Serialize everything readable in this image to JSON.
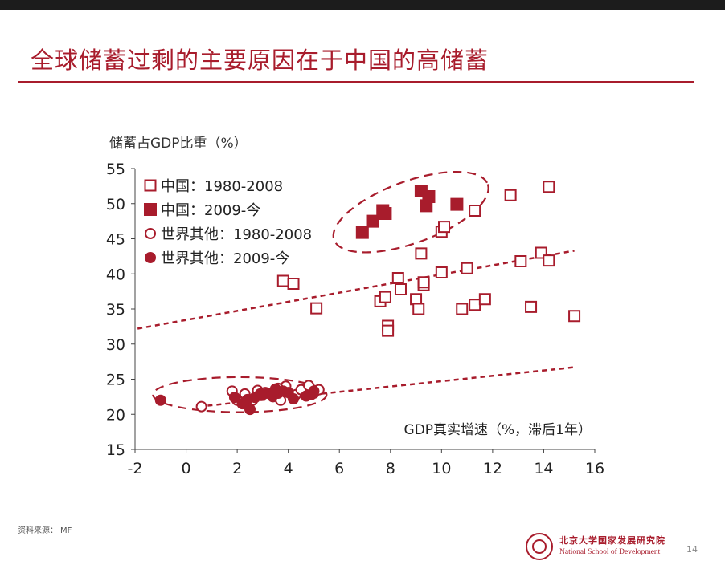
{
  "slide": {
    "title": "全球储蓄过剩的主要原因在于中国的高储蓄",
    "source": "资料来源：IMF",
    "page_number": "14",
    "logo_cn": "北京大学国家发展研究院",
    "logo_en": "National School of Development"
  },
  "colors": {
    "accent": "#a81c2c",
    "text": "#222222"
  },
  "chart_data": {
    "type": "scatter",
    "ylabel": "储蓄占GDP比重（%）",
    "xlabel": "GDP真实增速（%，滞后1年）",
    "xlim": [
      -2,
      16
    ],
    "ylim": [
      15,
      55
    ],
    "x_ticks": [
      -2,
      0,
      2,
      4,
      6,
      8,
      10,
      12,
      14,
      16
    ],
    "y_ticks": [
      15,
      20,
      25,
      30,
      35,
      40,
      45,
      50,
      55
    ],
    "legend_position": "top-left",
    "series": [
      {
        "name": "中国：1980-2008",
        "marker": "square-open",
        "points": [
          [
            3.8,
            39
          ],
          [
            4.2,
            38.6
          ],
          [
            5.1,
            35.1
          ],
          [
            7.6,
            36.1
          ],
          [
            7.8,
            36.7
          ],
          [
            7.9,
            32.6
          ],
          [
            7.9,
            31.9
          ],
          [
            8.3,
            39.4
          ],
          [
            8.4,
            37.8
          ],
          [
            9.0,
            36.4
          ],
          [
            9.1,
            35.0
          ],
          [
            9.2,
            42.9
          ],
          [
            9.3,
            38.4
          ],
          [
            9.3,
            38.8
          ],
          [
            10.0,
            40.2
          ],
          [
            10.0,
            46.0
          ],
          [
            10.1,
            46.7
          ],
          [
            10.8,
            35.0
          ],
          [
            11.0,
            40.8
          ],
          [
            11.3,
            35.6
          ],
          [
            11.3,
            49.0
          ],
          [
            11.7,
            36.4
          ],
          [
            12.7,
            51.2
          ],
          [
            13.1,
            41.8
          ],
          [
            13.5,
            35.3
          ],
          [
            13.9,
            43.0
          ],
          [
            14.2,
            52.4
          ],
          [
            14.2,
            41.9
          ],
          [
            15.2,
            34.0
          ]
        ]
      },
      {
        "name": "中国：2009-今",
        "marker": "square-filled",
        "points": [
          [
            6.9,
            45.9
          ],
          [
            7.3,
            47.5
          ],
          [
            7.7,
            49.0
          ],
          [
            7.8,
            48.6
          ],
          [
            9.2,
            51.8
          ],
          [
            9.5,
            51.0
          ],
          [
            9.4,
            49.7
          ],
          [
            10.6,
            49.9
          ]
        ]
      },
      {
        "name": "世界其他：1980-2008",
        "marker": "circle-open",
        "points": [
          [
            0.6,
            21.1
          ],
          [
            1.8,
            23.3
          ],
          [
            2.0,
            22.0
          ],
          [
            2.3,
            22.9
          ],
          [
            2.6,
            22.0
          ],
          [
            3.1,
            23.1
          ],
          [
            3.4,
            22.5
          ],
          [
            3.7,
            22.0
          ],
          [
            3.9,
            24.0
          ],
          [
            4.3,
            22.8
          ],
          [
            4.5,
            23.5
          ],
          [
            4.8,
            24.1
          ],
          [
            5.0,
            23.0
          ],
          [
            5.2,
            23.5
          ],
          [
            3.6,
            23.7
          ],
          [
            2.8,
            23.4
          ]
        ]
      },
      {
        "name": "世界其他：2009-今",
        "marker": "circle-filled",
        "points": [
          [
            -1.0,
            22.0
          ],
          [
            1.9,
            22.4
          ],
          [
            2.2,
            21.5
          ],
          [
            2.5,
            20.7
          ],
          [
            2.7,
            22.4
          ],
          [
            2.9,
            22.9
          ],
          [
            3.2,
            23.0
          ],
          [
            3.4,
            22.7
          ],
          [
            3.6,
            23.0
          ],
          [
            3.8,
            23.3
          ],
          [
            4.0,
            23.1
          ],
          [
            4.2,
            22.2
          ],
          [
            4.9,
            22.8
          ],
          [
            5.0,
            23.3
          ],
          [
            4.7,
            22.6
          ],
          [
            3.5,
            23.6
          ],
          [
            2.4,
            22.1
          ],
          [
            3.0,
            22.8
          ]
        ]
      }
    ],
    "trend_lines": [
      {
        "from": [
          -1.9,
          32.2
        ],
        "to": [
          15.2,
          43.3
        ]
      },
      {
        "from": [
          0.5,
          21.1
        ],
        "to": [
          15.2,
          26.7
        ]
      }
    ],
    "ellipses": [
      {
        "cx": 8.8,
        "cy": 48.8,
        "rx": 3.2,
        "ry": 4.4,
        "rotation_deg": 20
      },
      {
        "cx": 2.1,
        "cy": 22.8,
        "rx": 3.4,
        "ry": 2.5,
        "rotation_deg": 0
      }
    ]
  }
}
